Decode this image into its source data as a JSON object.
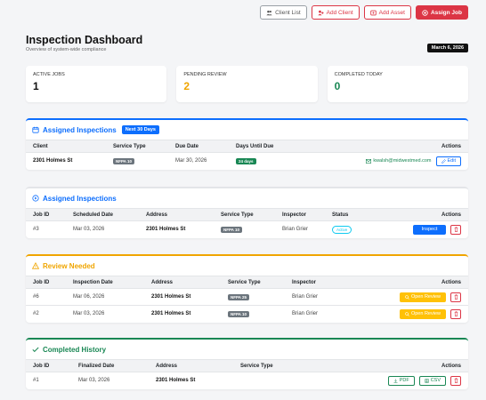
{
  "toolbar": {
    "client_list": "Client List",
    "add_client": "Add Client",
    "add_asset": "Add Asset",
    "assign_job": "Assign Job"
  },
  "header": {
    "title": "Inspection Dashboard",
    "subtitle": "Overview of system-wide compliance",
    "date": "March 6, 2026"
  },
  "stats": [
    {
      "label": "Active Jobs",
      "value": "1",
      "color": "#111111"
    },
    {
      "label": "Pending Review",
      "value": "2",
      "color": "#f0a500"
    },
    {
      "label": "Completed Today",
      "value": "0",
      "color": "#198754"
    }
  ],
  "assigned_upcoming": {
    "title": "Assigned Inspections",
    "badge": "Next 30 Days",
    "color": "#0d6efd",
    "columns": [
      "Client",
      "Service Type",
      "Due Date",
      "Days Until Due",
      "Actions"
    ],
    "row": {
      "client": "2301 Holmes St",
      "service": "NFPA 10",
      "due": "Mar 30, 2026",
      "days": "24 days",
      "email": "kwalsh@midwestmed.com",
      "edit": "Edit"
    }
  },
  "assigned": {
    "title": "Assigned Inspections",
    "color": "#0d6efd",
    "columns": [
      "Job ID",
      "Scheduled Date",
      "Address",
      "Service Type",
      "Inspector",
      "Status",
      "Actions"
    ],
    "row": {
      "id": "#3",
      "date": "Mar 03, 2026",
      "address": "2301 Holmes St",
      "service": "NFPA 10",
      "inspector": "Brian Grier",
      "status": "Active",
      "action": "Inspect"
    }
  },
  "review": {
    "title": "Review Needed",
    "color": "#f0a500",
    "columns": [
      "Job ID",
      "Inspection Date",
      "Address",
      "Service Type",
      "Inspector",
      "Actions"
    ],
    "rows": [
      {
        "id": "#6",
        "date": "Mar 06, 2026",
        "address": "2301 Holmes St",
        "service": "NFPA 25",
        "inspector": "Brian Grier",
        "action": "Open Review"
      },
      {
        "id": "#2",
        "date": "Mar 03, 2026",
        "address": "2301 Holmes St",
        "service": "NFPA 10",
        "inspector": "Brian Grier",
        "action": "Open Review"
      }
    ]
  },
  "completed": {
    "title": "Completed History",
    "color": "#198754",
    "columns": [
      "Job ID",
      "Finalized Date",
      "Address",
      "Service Type",
      "Actions"
    ],
    "row": {
      "id": "#1",
      "date": "Mar 03, 2026",
      "address": "2301 Holmes St",
      "pdf": "PDF",
      "csv": "CSV"
    }
  }
}
